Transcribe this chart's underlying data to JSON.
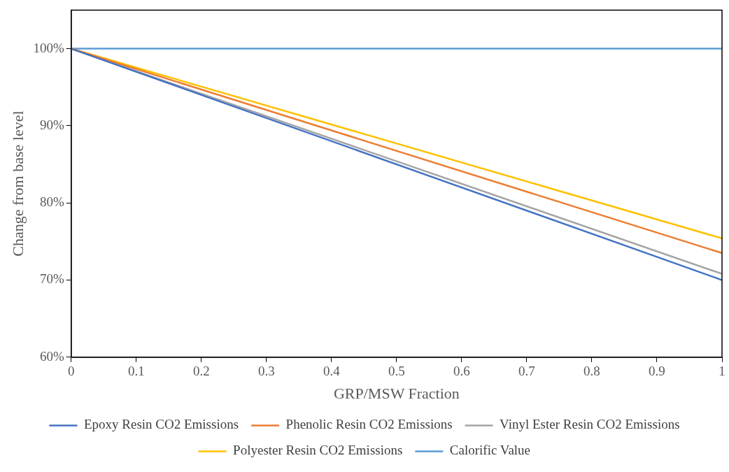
{
  "chart_data": {
    "type": "line",
    "xlabel": "GRP/MSW Fraction",
    "ylabel": "Change from base level",
    "x": [
      0,
      1
    ],
    "series": [
      {
        "name": "Epoxy Resin CO2 Emissions",
        "color": "#4472c4",
        "values": [
          100,
          70
        ]
      },
      {
        "name": "Phenolic Resin CO2 Emissions",
        "color": "#ed7d31",
        "values": [
          100,
          73.5
        ]
      },
      {
        "name": "Vinyl Ester Resin CO2 Emissions",
        "color": "#a5a5a5",
        "values": [
          100,
          70.8
        ]
      },
      {
        "name": "Polyester Resin CO2 Emissions",
        "color": "#ffc000",
        "values": [
          100,
          75.4
        ]
      },
      {
        "name": "Calorific Value",
        "color": "#5b9bd5",
        "values": [
          100,
          100
        ]
      }
    ],
    "xlim": [
      0,
      1
    ],
    "xticks": [
      0,
      0.1,
      0.2,
      0.3,
      0.4,
      0.5,
      0.6,
      0.7,
      0.8,
      0.9,
      1
    ],
    "ylim": [
      60,
      105
    ],
    "yticks": [
      {
        "value": 60,
        "label": "60%"
      },
      {
        "value": 70,
        "label": "70%"
      },
      {
        "value": 80,
        "label": "80%"
      },
      {
        "value": 90,
        "label": "90%"
      },
      {
        "value": 100,
        "label": "100%"
      }
    ],
    "grid": false,
    "legend": "bottom",
    "marker": "none",
    "line_style": "solid"
  }
}
